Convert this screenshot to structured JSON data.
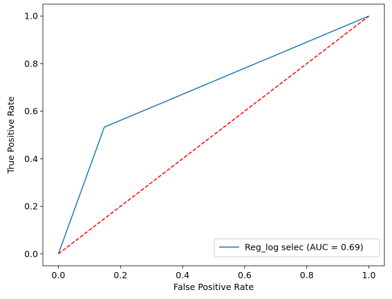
{
  "chart_data": {
    "type": "line",
    "xlabel": "False Positive Rate",
    "ylabel": "True Positive Rate",
    "xlim": [
      -0.05,
      1.05
    ],
    "ylim": [
      -0.05,
      1.05
    ],
    "xticks": [
      0.0,
      0.2,
      0.4,
      0.6,
      0.8,
      1.0
    ],
    "yticks": [
      0.0,
      0.2,
      0.4,
      0.6,
      0.8,
      1.0
    ],
    "xtick_labels": [
      "0.0",
      "0.2",
      "0.4",
      "0.6",
      "0.8",
      "1.0"
    ],
    "ytick_labels": [
      "0.0",
      "0.2",
      "0.4",
      "0.6",
      "0.8",
      "1.0"
    ],
    "grid": false,
    "legend_position": "lower-right",
    "series": [
      {
        "name": "Reg_log selec (AUC = 0.69)",
        "color": "#1f77b4",
        "style": "solid",
        "x": [
          0.0,
          0.148,
          1.0
        ],
        "y": [
          0.0,
          0.533,
          1.0
        ]
      },
      {
        "color": "#ff0000",
        "style": "dashed",
        "x": [
          0.0,
          1.0
        ],
        "y": [
          0.0,
          1.0
        ]
      }
    ]
  }
}
